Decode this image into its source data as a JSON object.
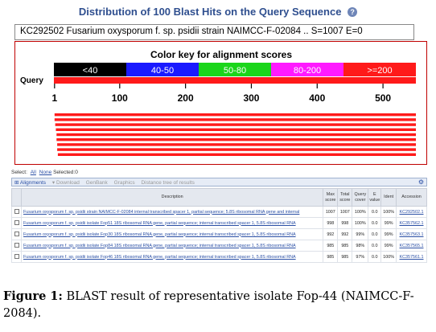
{
  "title": "Distribution of 100 Blast Hits on the Query Sequence",
  "help_icon": "?",
  "query_text": "KC292502 Fusarium oxysporum f. sp. psidii strain NAIMCC-F-02084 .. S=1007 E=0",
  "graphic": {
    "color_key_title": "Color key for alignment scores",
    "color_key": [
      {
        "label": "<40",
        "color": "#000000",
        "text_color": "#ffffff"
      },
      {
        "label": "40-50",
        "color": "#1a1aff",
        "text_color": "#ffffff"
      },
      {
        "label": "50-80",
        "color": "#1bd61b",
        "text_color": "#ffffff"
      },
      {
        "label": "80-200",
        "color": "#ff1aff",
        "text_color": "#ffffff"
      },
      {
        "label": ">=200",
        "color": "#ff1a1a",
        "text_color": "#ffffff"
      }
    ],
    "query_label": "Query",
    "ticks": [
      "1",
      "100",
      "200",
      "300",
      "400",
      "500"
    ],
    "tick_values": [
      1,
      100,
      200,
      300,
      400,
      500
    ],
    "axis_max": 550,
    "hit_bars": [
      {
        "start": 1,
        "end": 550
      },
      {
        "start": 1,
        "end": 550
      },
      {
        "start": 2,
        "end": 550
      },
      {
        "start": 3,
        "end": 550
      },
      {
        "start": 4,
        "end": 550
      },
      {
        "start": 4,
        "end": 550
      },
      {
        "start": 5,
        "end": 550
      },
      {
        "start": 5,
        "end": 550
      },
      {
        "start": 6,
        "end": 550
      }
    ],
    "hit_color": "#ff1a1a"
  },
  "select": {
    "label": "Select:",
    "all": "All",
    "none": "None",
    "selected": "Selected:0"
  },
  "toolbar": {
    "alignments": "Alignments",
    "download": "Download",
    "genbank": "GenBank",
    "graphics": "Graphics",
    "distance_tree": "Distance tree of results"
  },
  "table": {
    "headers": {
      "description": "Description",
      "max_score": "Max score",
      "total_score": "Total score",
      "query_cover": "Query cover",
      "e_value": "E value",
      "ident": "Ident",
      "accession": "Accession"
    },
    "rows": [
      {
        "description": "Fusarium oxysporum f. sp. psidii strain NAIMCC-F-02084 internal transcribed spacer 1, partial sequence; 5.8S ribosomal RNA gene and internal",
        "max": "1007",
        "total": "1007",
        "cover": "100%",
        "e": "0.0",
        "ident": "100%",
        "acc": "KC292502.1"
      },
      {
        "description": "Fusarium oxysporum f. sp. psidii isolate Fop51 18S ribosomal RNA gene, partial sequence; internal transcribed spacer 1, 5.8S ribosomal RNA",
        "max": "998",
        "total": "998",
        "cover": "100%",
        "e": "0.0",
        "ident": "99%",
        "acc": "KC357562.1"
      },
      {
        "description": "Fusarium oxysporum f. sp. psidii isolate Fop30 18S ribosomal RNA gene, partial sequence; internal transcribed spacer 1, 5.8S ribosomal RNA",
        "max": "992",
        "total": "992",
        "cover": "99%",
        "e": "0.0",
        "ident": "99%",
        "acc": "KC357563.1"
      },
      {
        "description": "Fusarium oxysporum f. sp. psidii isolate Fop84 18S ribosomal RNA gene, partial sequence; internal transcribed spacer 1, 5.8S ribosomal RNA",
        "max": "985",
        "total": "985",
        "cover": "98%",
        "e": "0.0",
        "ident": "99%",
        "acc": "KC357565.1"
      },
      {
        "description": "Fusarium oxysporum f. sp. psidii isolate Fop46 18S ribosomal RNA gene, partial sequence; internal transcribed spacer 1, 5.8S ribosomal RNA",
        "max": "985",
        "total": "985",
        "cover": "97%",
        "e": "0.0",
        "ident": "100%",
        "acc": "KC357561.1"
      }
    ]
  },
  "caption": {
    "label": "Figure 1:",
    "text": " BLAST result of representative isolate Fop-44 (NAIMCC-F-2084)."
  }
}
